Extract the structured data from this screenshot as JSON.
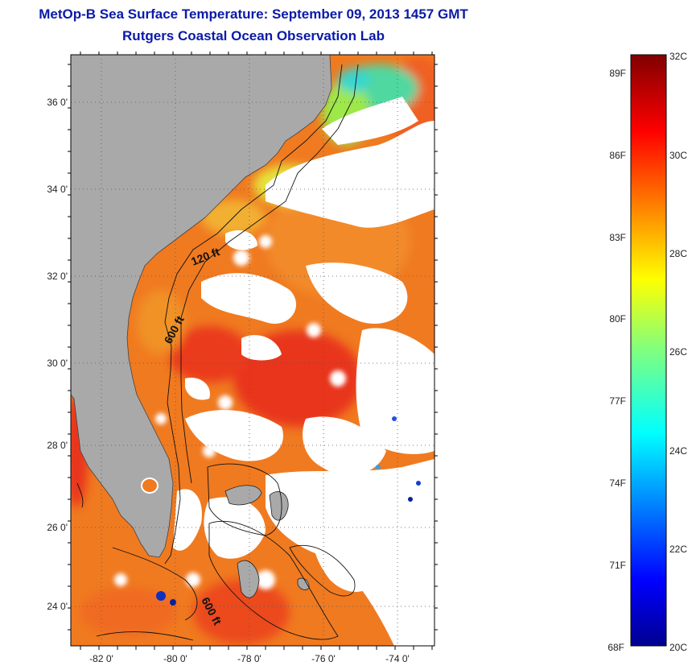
{
  "header": {
    "title": "MetOp-B Sea Surface Temperature:  September 09, 2013 1457 GMT",
    "subtitle": "Rutgers Coastal Ocean Observation Lab"
  },
  "map": {
    "lat_labels": [
      "36 0'",
      "34 0'",
      "32 0'",
      "30 0'",
      "28 0'",
      "26 0'",
      "24 0'"
    ],
    "lon_labels": [
      "-82 0'",
      "-80 0'",
      "-78 0'",
      "-76 0'",
      "-74 0'"
    ],
    "contour_labels": [
      "120 ft",
      "600 ft",
      "600 ft"
    ],
    "colors": {
      "land": "#a9a9a9",
      "cloud": "#ffffff",
      "grid": "#555555"
    }
  },
  "colorbar": {
    "fahrenheit_labels": [
      "89F",
      "86F",
      "83F",
      "80F",
      "77F",
      "74F",
      "71F",
      "68F"
    ],
    "celsius_labels": [
      "32C",
      "30C",
      "28C",
      "26C",
      "24C",
      "22C",
      "20C"
    ],
    "range_c": [
      20,
      32
    ],
    "range_f": [
      68,
      89.6
    ],
    "colormap": "jet"
  }
}
